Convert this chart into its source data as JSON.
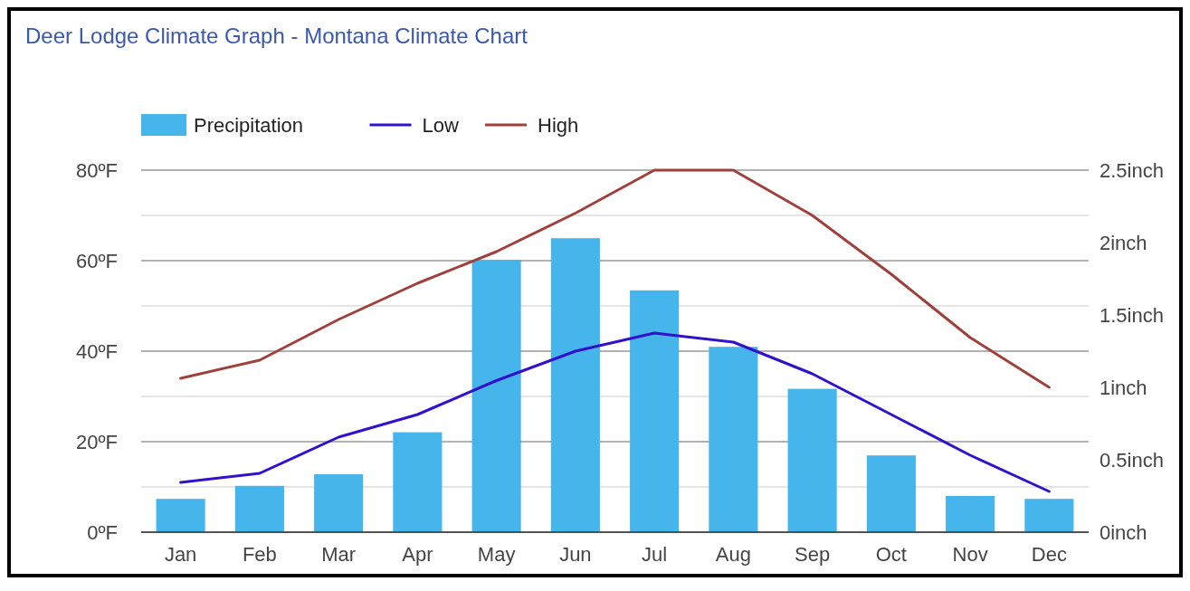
{
  "chart_data": {
    "type": "bar",
    "title": "Deer Lodge Climate Graph - Montana Climate Chart",
    "categories": [
      "Jan",
      "Feb",
      "Mar",
      "Apr",
      "May",
      "Jun",
      "Jul",
      "Aug",
      "Sep",
      "Oct",
      "Nov",
      "Dec"
    ],
    "series": [
      {
        "name": "Precipitation",
        "axis": "y2",
        "color": "#45b5ec",
        "values": [
          0.23,
          0.32,
          0.4,
          0.69,
          1.88,
          2.03,
          1.67,
          1.28,
          0.99,
          0.53,
          0.25,
          0.23
        ]
      },
      {
        "name": "Low",
        "type": "line",
        "color": "#3311cc",
        "values": [
          11,
          13,
          21,
          26,
          33.5,
          40,
          44,
          42,
          35,
          26,
          17,
          9
        ]
      },
      {
        "name": "High",
        "type": "line",
        "color": "#a0403c",
        "values": [
          34,
          38,
          47,
          55,
          62,
          70.5,
          80,
          80,
          70,
          57,
          43,
          32
        ]
      }
    ],
    "ylim": [
      0,
      80
    ],
    "yticks": [
      {
        "value": 0,
        "label": "0ºF"
      },
      {
        "value": 10,
        "label": null
      },
      {
        "value": 20,
        "label": "20ºF"
      },
      {
        "value": 30,
        "label": null
      },
      {
        "value": 40,
        "label": "40ºF"
      },
      {
        "value": 50,
        "label": null
      },
      {
        "value": 60,
        "label": "60ºF"
      },
      {
        "value": 70,
        "label": null
      },
      {
        "value": 80,
        "label": "80ºF"
      }
    ],
    "y2lim": [
      0,
      2.5
    ],
    "y2ticks": [
      {
        "value": 0,
        "label": "0inch"
      },
      {
        "value": 0.5,
        "label": "0.5inch"
      },
      {
        "value": 1,
        "label": "1inch"
      },
      {
        "value": 1.5,
        "label": "1.5inch"
      },
      {
        "value": 2,
        "label": "2inch"
      },
      {
        "value": 2.5,
        "label": "2.5inch"
      }
    ],
    "grid": "y",
    "legend": "top left"
  }
}
